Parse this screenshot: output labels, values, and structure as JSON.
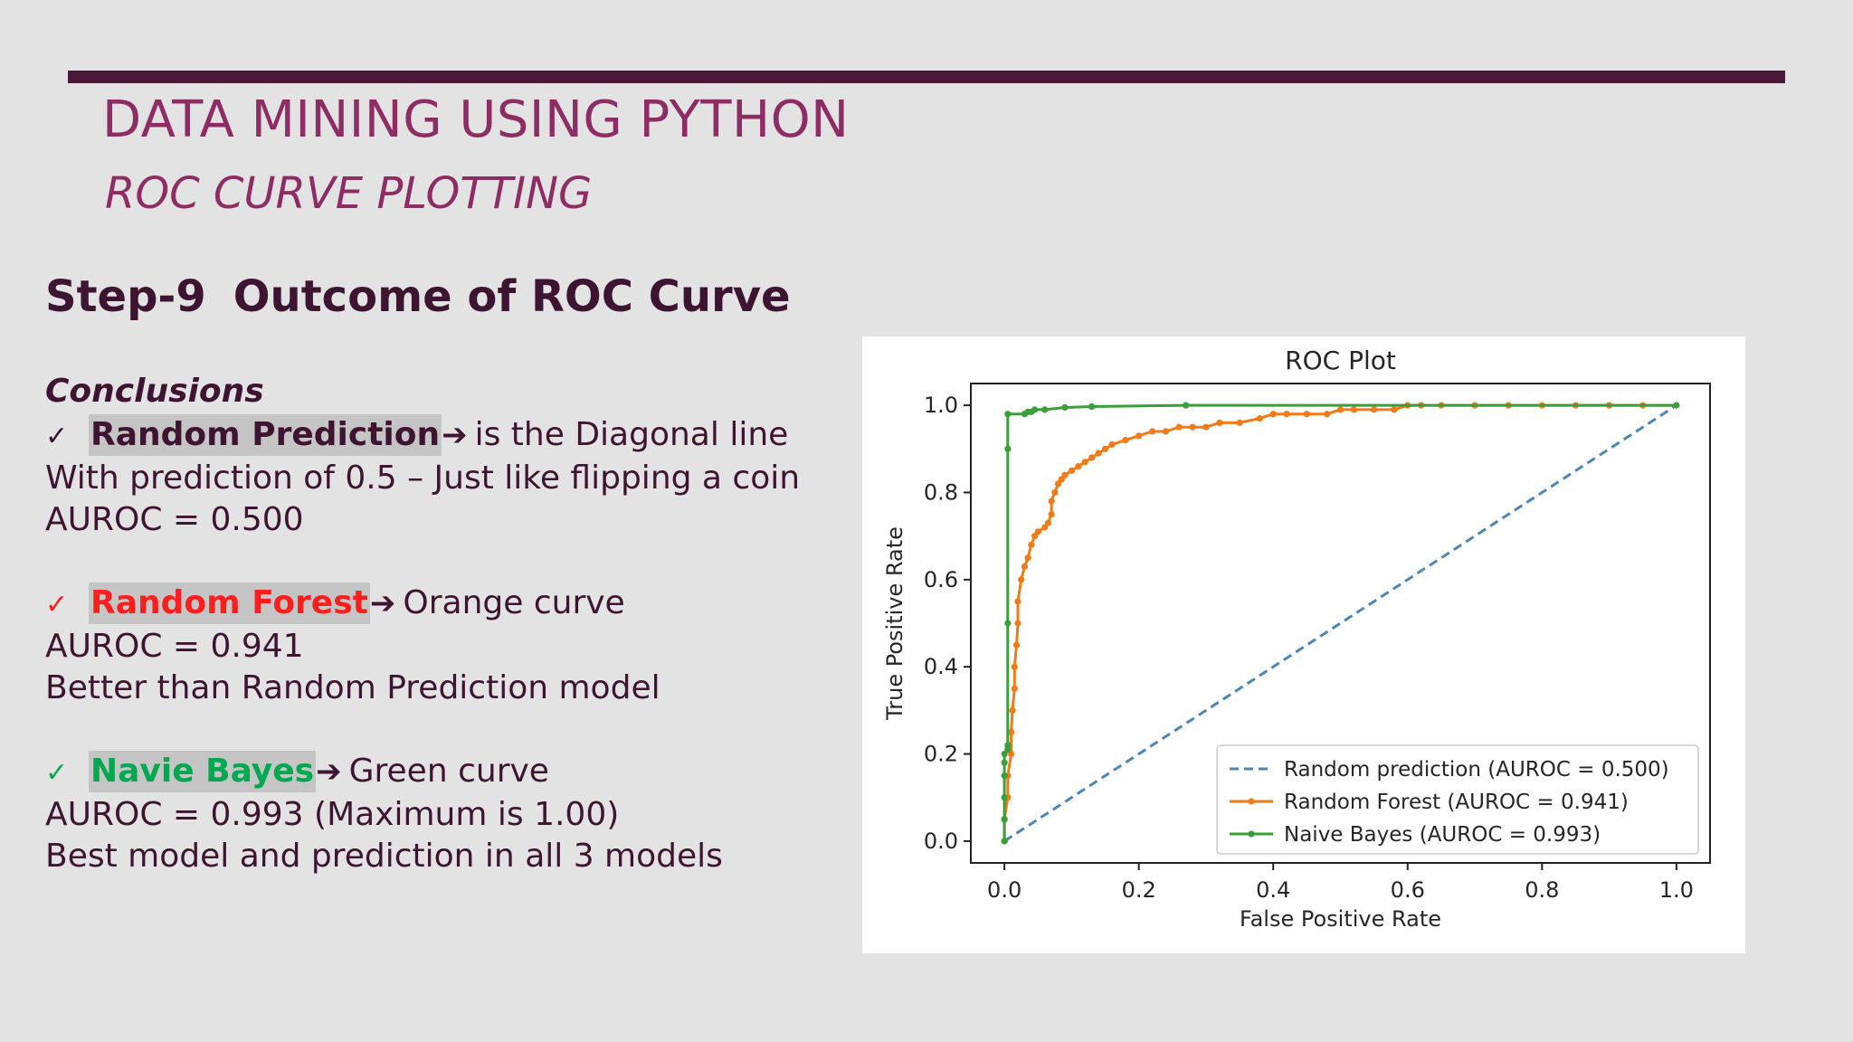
{
  "slide": {
    "title": "DATA MINING USING PYTHON",
    "subtitle": "ROC CURVE PLOTTING",
    "step_label": "Step-9",
    "step_title": "Outcome of ROC Curve",
    "conclusions_heading": "Conclusions",
    "check_icon": "check-mark-icon",
    "arrow_icon": "right-arrow-icon",
    "items": [
      {
        "name": "Random Prediction",
        "arrow": "➔",
        "desc": "is the Diagonal line",
        "lines": [
          "With prediction of 0.5 – Just like flipping a coin",
          "AUROC = 0.500"
        ]
      },
      {
        "name": "Random Forest",
        "arrow": "➔",
        "desc": "Orange curve",
        "lines": [
          "AUROC = 0.941",
          "Better than Random Prediction model"
        ]
      },
      {
        "name": "Navie Bayes",
        "arrow": "➔",
        "desc": "Green curve",
        "lines": [
          "AUROC = 0.993 (Maximum is 1.00)",
          "Best model and prediction in all 3 models"
        ]
      }
    ],
    "colors": {
      "title": "#8e2c64",
      "text": "#3d1530",
      "random_forest_label": "#ff1e1e",
      "naive_bayes_label": "#00a84f"
    }
  },
  "chart_data": {
    "type": "line",
    "title": "ROC Plot",
    "xlabel": "False Positive Rate",
    "ylabel": "True Positive Rate",
    "xlim": [
      -0.05,
      1.05
    ],
    "ylim": [
      -0.05,
      1.05
    ],
    "xticks": [
      0.0,
      0.2,
      0.4,
      0.6,
      0.8,
      1.0
    ],
    "yticks": [
      0.0,
      0.2,
      0.4,
      0.6,
      0.8,
      1.0
    ],
    "legend_position": "bottom-right",
    "series": [
      {
        "name": "Random prediction (AUROC = 0.500)",
        "color": "#4f87b3",
        "style": "dashed",
        "x": [
          0.0,
          1.0
        ],
        "y": [
          0.0,
          1.0
        ]
      },
      {
        "name": "Random Forest (AUROC = 0.941)",
        "color": "#f07b1a",
        "style": "solid-marker",
        "x": [
          0.0,
          0.0,
          0.005,
          0.005,
          0.01,
          0.01,
          0.012,
          0.015,
          0.015,
          0.018,
          0.02,
          0.02,
          0.025,
          0.03,
          0.035,
          0.04,
          0.045,
          0.05,
          0.06,
          0.065,
          0.07,
          0.07,
          0.075,
          0.08,
          0.085,
          0.09,
          0.1,
          0.11,
          0.12,
          0.13,
          0.14,
          0.15,
          0.16,
          0.18,
          0.2,
          0.22,
          0.24,
          0.26,
          0.28,
          0.3,
          0.32,
          0.35,
          0.38,
          0.4,
          0.42,
          0.45,
          0.48,
          0.5,
          0.52,
          0.55,
          0.58,
          0.6,
          0.62,
          0.65,
          0.7,
          0.75,
          0.8,
          0.85,
          0.9,
          0.95,
          1.0
        ],
        "y": [
          0.0,
          0.05,
          0.1,
          0.15,
          0.2,
          0.25,
          0.3,
          0.35,
          0.4,
          0.45,
          0.5,
          0.55,
          0.6,
          0.63,
          0.65,
          0.68,
          0.7,
          0.71,
          0.72,
          0.73,
          0.75,
          0.78,
          0.8,
          0.82,
          0.83,
          0.84,
          0.85,
          0.86,
          0.87,
          0.88,
          0.89,
          0.9,
          0.91,
          0.92,
          0.93,
          0.94,
          0.94,
          0.95,
          0.95,
          0.95,
          0.96,
          0.96,
          0.97,
          0.98,
          0.98,
          0.98,
          0.98,
          0.99,
          0.99,
          0.99,
          0.99,
          1.0,
          1.0,
          1.0,
          1.0,
          1.0,
          1.0,
          1.0,
          1.0,
          1.0,
          1.0
        ]
      },
      {
        "name": "Naive Bayes (AUROC = 0.993)",
        "color": "#3a9e3a",
        "style": "solid-marker",
        "x": [
          0.0,
          0.0,
          0.0,
          0.0,
          0.0,
          0.0,
          0.005,
          0.005,
          0.005,
          0.005,
          0.005,
          0.03,
          0.035,
          0.04,
          0.045,
          0.06,
          0.09,
          0.13,
          0.27,
          1.0
        ],
        "y": [
          0.0,
          0.05,
          0.1,
          0.15,
          0.18,
          0.2,
          0.21,
          0.22,
          0.5,
          0.9,
          0.98,
          0.98,
          0.985,
          0.985,
          0.99,
          0.99,
          0.995,
          0.997,
          1.0,
          1.0
        ]
      }
    ]
  }
}
